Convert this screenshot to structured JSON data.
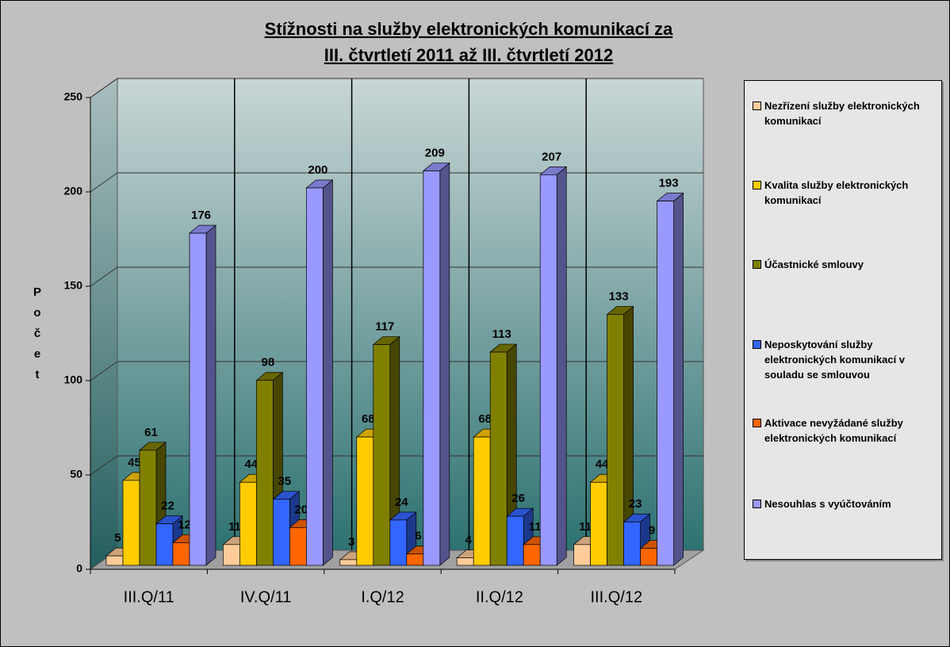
{
  "chart_data": {
    "type": "bar3d",
    "title": [
      "Stížnosti na služby elektronických komunikací za",
      "III. čtvrtletí 2011 až III. čtvrtletí 2012"
    ],
    "y_label": "Počet",
    "categories": [
      "III.Q/11",
      "IV.Q/11",
      "I.Q/12",
      "II.Q/12",
      "III.Q/12"
    ],
    "series": [
      {
        "name": "Nezřízení služby elektronických komunikací",
        "color": "#FFCC99",
        "values": [
          5,
          11,
          3,
          4,
          11
        ]
      },
      {
        "name": "Kvalita služby elektronických komunikací",
        "color": "#FFCC00",
        "values": [
          45,
          44,
          68,
          68,
          44
        ]
      },
      {
        "name": "Účastnické smlouvy",
        "color": "#808000",
        "values": [
          61,
          98,
          117,
          113,
          133
        ]
      },
      {
        "name": "Neposkytování služby elektronických komunikací v souladu se smlouvou",
        "color": "#3366FF",
        "values": [
          22,
          35,
          24,
          26,
          23
        ]
      },
      {
        "name": "Aktivace nevyžádané služby elektronických komunikací",
        "color": "#FF6600",
        "values": [
          12,
          20,
          6,
          11,
          9
        ]
      },
      {
        "name": "Nesouhlas s vyúčtováním",
        "color": "#9999FF",
        "values": [
          176,
          200,
          209,
          207,
          193
        ]
      }
    ],
    "ylim": [
      0,
      250
    ],
    "yticks": [
      0,
      50,
      100,
      150,
      200,
      250
    ],
    "grid": true,
    "legend": "right"
  }
}
